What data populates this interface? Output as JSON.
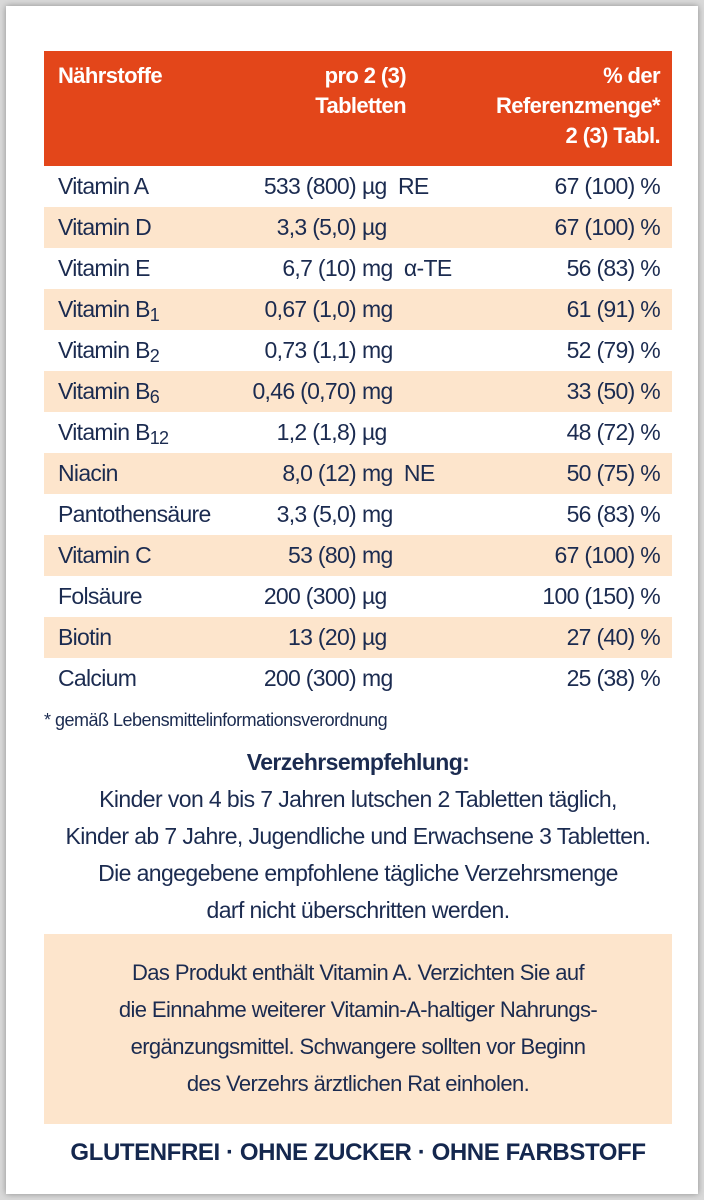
{
  "header": {
    "col1": "Nährstoffe",
    "col2_line1": "pro 2 (3)",
    "col2_line2": "Tabletten",
    "col3_line1": "% der",
    "col3_line2": "Referenzmenge*",
    "col3_line3": "2 (3) Tabl."
  },
  "rows": [
    {
      "name": "Vitamin A",
      "sub": "",
      "amount": "533 (800)",
      "unit": "µg  RE",
      "percent": "67 (100) %"
    },
    {
      "name": "Vitamin D",
      "sub": "",
      "amount": "3,3 (5,0)",
      "unit": "µg",
      "percent": "67 (100) %"
    },
    {
      "name": "Vitamin E",
      "sub": "",
      "amount": "6,7 (10)",
      "unit": "mg  α-TE",
      "percent": "56 (83) %"
    },
    {
      "name": "Vitamin B",
      "sub": "1",
      "amount": "0,67 (1,0)",
      "unit": "mg",
      "percent": "61 (91) %"
    },
    {
      "name": "Vitamin B",
      "sub": "2",
      "amount": "0,73 (1,1)",
      "unit": "mg",
      "percent": "52 (79) %"
    },
    {
      "name": "Vitamin B",
      "sub": "6",
      "amount": "0,46 (0,70)",
      "unit": "mg",
      "percent": "33 (50) %"
    },
    {
      "name": "Vitamin B",
      "sub": "12",
      "amount": "1,2 (1,8)",
      "unit": "µg",
      "percent": "48 (72) %"
    },
    {
      "name": "Niacin",
      "sub": "",
      "amount": "8,0 (12)",
      "unit": "mg  NE",
      "percent": "50 (75) %"
    },
    {
      "name": "Pantothensäure",
      "sub": "",
      "amount": "3,3 (5,0)",
      "unit": "mg",
      "percent": "56 (83) %"
    },
    {
      "name": "Vitamin C",
      "sub": "",
      "amount": "53 (80)",
      "unit": "mg",
      "percent": "67 (100) %"
    },
    {
      "name": "Folsäure",
      "sub": "",
      "amount": "200 (300)",
      "unit": "µg",
      "percent": "100 (150) %"
    },
    {
      "name": "Biotin",
      "sub": "",
      "amount": "13 (20)",
      "unit": "µg",
      "percent": "27 (40) %"
    },
    {
      "name": "Calcium",
      "sub": "",
      "amount": "200 (300)",
      "unit": "mg",
      "percent": "25 (38) %"
    }
  ],
  "footnote": "* gemäß Lebensmittelinformationsverordnung",
  "recommendation": {
    "title": "Verzehrsempfehlung:",
    "lines": [
      "Kinder von 4 bis 7 Jahren lutschen 2 Tabletten täglich,",
      "Kinder ab 7 Jahre, Jugendliche und Erwachsene 3 Tabletten.",
      "Die angegebene empfohlene tägliche Verzehrsmenge",
      "darf nicht überschritten werden."
    ]
  },
  "warning": {
    "lines": [
      "Das Produkt enthält Vitamin A. Verzichten Sie auf",
      "die Einnahme weiterer Vitamin-A-haltiger Nahrungs-",
      "ergänzungsmittel. Schwangere sollten vor Beginn",
      "des Verzehrs ärztlichen Rat einholen."
    ]
  },
  "claims": "GLUTENFREI · OHNE ZUCKER · OHNE FARBSTOFF",
  "colors": {
    "header": "#e3461a",
    "stripe": "#fde5cc",
    "text": "#1b2b50"
  }
}
